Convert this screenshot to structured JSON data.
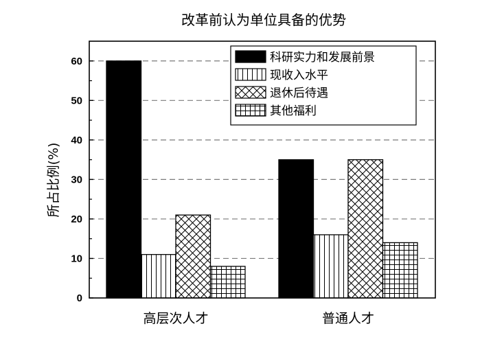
{
  "chart_data": {
    "type": "bar",
    "title": "改革前认为单位具备的优势",
    "xlabel": "",
    "ylabel": "所占比例(%)",
    "ylim": [
      0,
      65
    ],
    "yticks": [
      0,
      10,
      20,
      30,
      40,
      50,
      60
    ],
    "grid": "horizontal dashed",
    "legend_position": "top-right",
    "categories": [
      "高层次人才",
      "普通人才"
    ],
    "series": [
      {
        "name": "科研实力和发展前景",
        "pattern": "solid-black",
        "values": [
          60,
          35
        ]
      },
      {
        "name": "现收入水平",
        "pattern": "vertical-lines",
        "values": [
          11,
          16
        ]
      },
      {
        "name": "退休后待遇",
        "pattern": "crosshatch",
        "values": [
          21,
          35
        ]
      },
      {
        "name": "其他福利",
        "pattern": "grid",
        "values": [
          8,
          14
        ]
      }
    ]
  }
}
